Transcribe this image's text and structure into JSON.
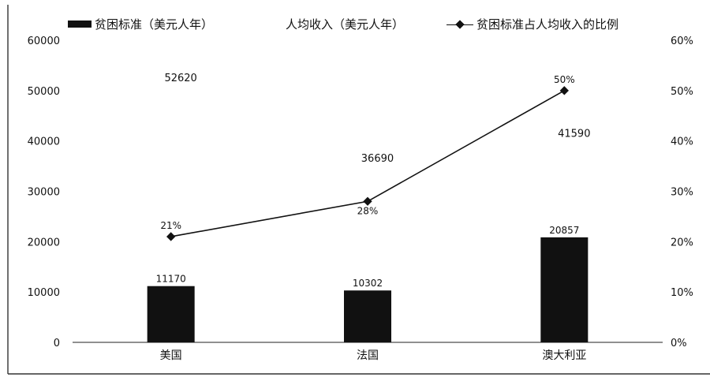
{
  "chart_data": {
    "type": "bar",
    "categories": [
      "美国",
      "法国",
      "澳大利亚"
    ],
    "series": [
      {
        "name": "贫困标准（美元人年）",
        "type": "bar",
        "axis": "left",
        "values": [
          11170,
          10302,
          20857
        ],
        "labels": [
          "11170",
          "10302",
          "20857"
        ]
      },
      {
        "name": "人均收入（美元人年）",
        "type": "text",
        "axis": "left",
        "values": [
          52620,
          36690,
          41590
        ],
        "labels": [
          "52620",
          "36690",
          "41590"
        ]
      },
      {
        "name": "贫困标准占人均收入的比例",
        "type": "line",
        "axis": "right",
        "values": [
          0.21,
          0.28,
          0.5
        ],
        "labels": [
          "21%",
          "28%",
          "50%"
        ]
      }
    ],
    "y_left": {
      "min": 0,
      "max": 60000,
      "ticks": [
        "0",
        "10000",
        "20000",
        "30000",
        "40000",
        "50000",
        "60000"
      ]
    },
    "y_right": {
      "min": 0,
      "max": 0.6,
      "ticks": [
        "0%",
        "10%",
        "20%",
        "30%",
        "40%",
        "50%",
        "60%"
      ]
    },
    "grid": false,
    "legend_position": "top"
  },
  "legend": {
    "bar_label": "贫困标准（美元人年）",
    "income_label": "人均收入（美元人年）",
    "ratio_label": "贫困标准占人均收入的比例"
  },
  "colors": {
    "bar": "#111111",
    "line": "#111111",
    "axis": "#222222",
    "text": "#111111"
  }
}
